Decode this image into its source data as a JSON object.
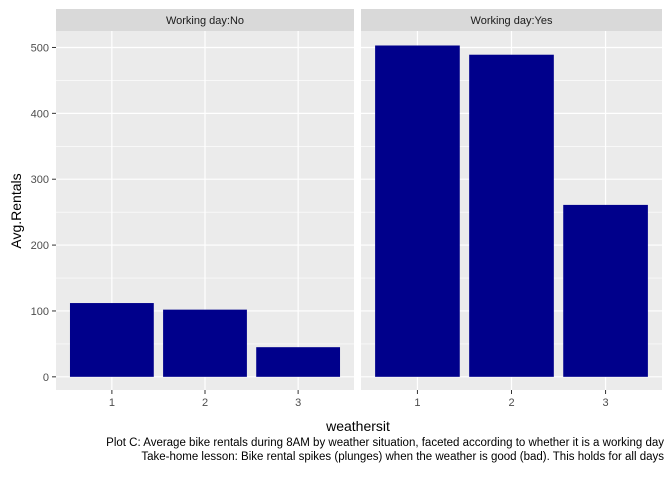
{
  "chart_data": {
    "type": "bar",
    "xlabel": "weathersit",
    "ylabel": "Avg.Rentals",
    "ylim": [
      -20,
      525
    ],
    "yticks": [
      0,
      100,
      200,
      300,
      400,
      500
    ],
    "categories": [
      "1",
      "2",
      "3"
    ],
    "bar_color": "#00008B",
    "panel_bg": "#EBEBEB",
    "strip_bg": "#D9D9D9",
    "grid": true,
    "facets": [
      {
        "label": "Working day:No",
        "values": [
          112,
          102,
          45
        ]
      },
      {
        "label": "Working day:Yes",
        "values": [
          503,
          489,
          261
        ]
      }
    ],
    "caption_lines": [
      "Plot C: Average bike rentals during 8AM by weather situation, faceted according to whether it is a working day",
      "Take-home lesson: Bike rental spikes (plunges) when the weather is good (bad). This holds for all days"
    ]
  }
}
